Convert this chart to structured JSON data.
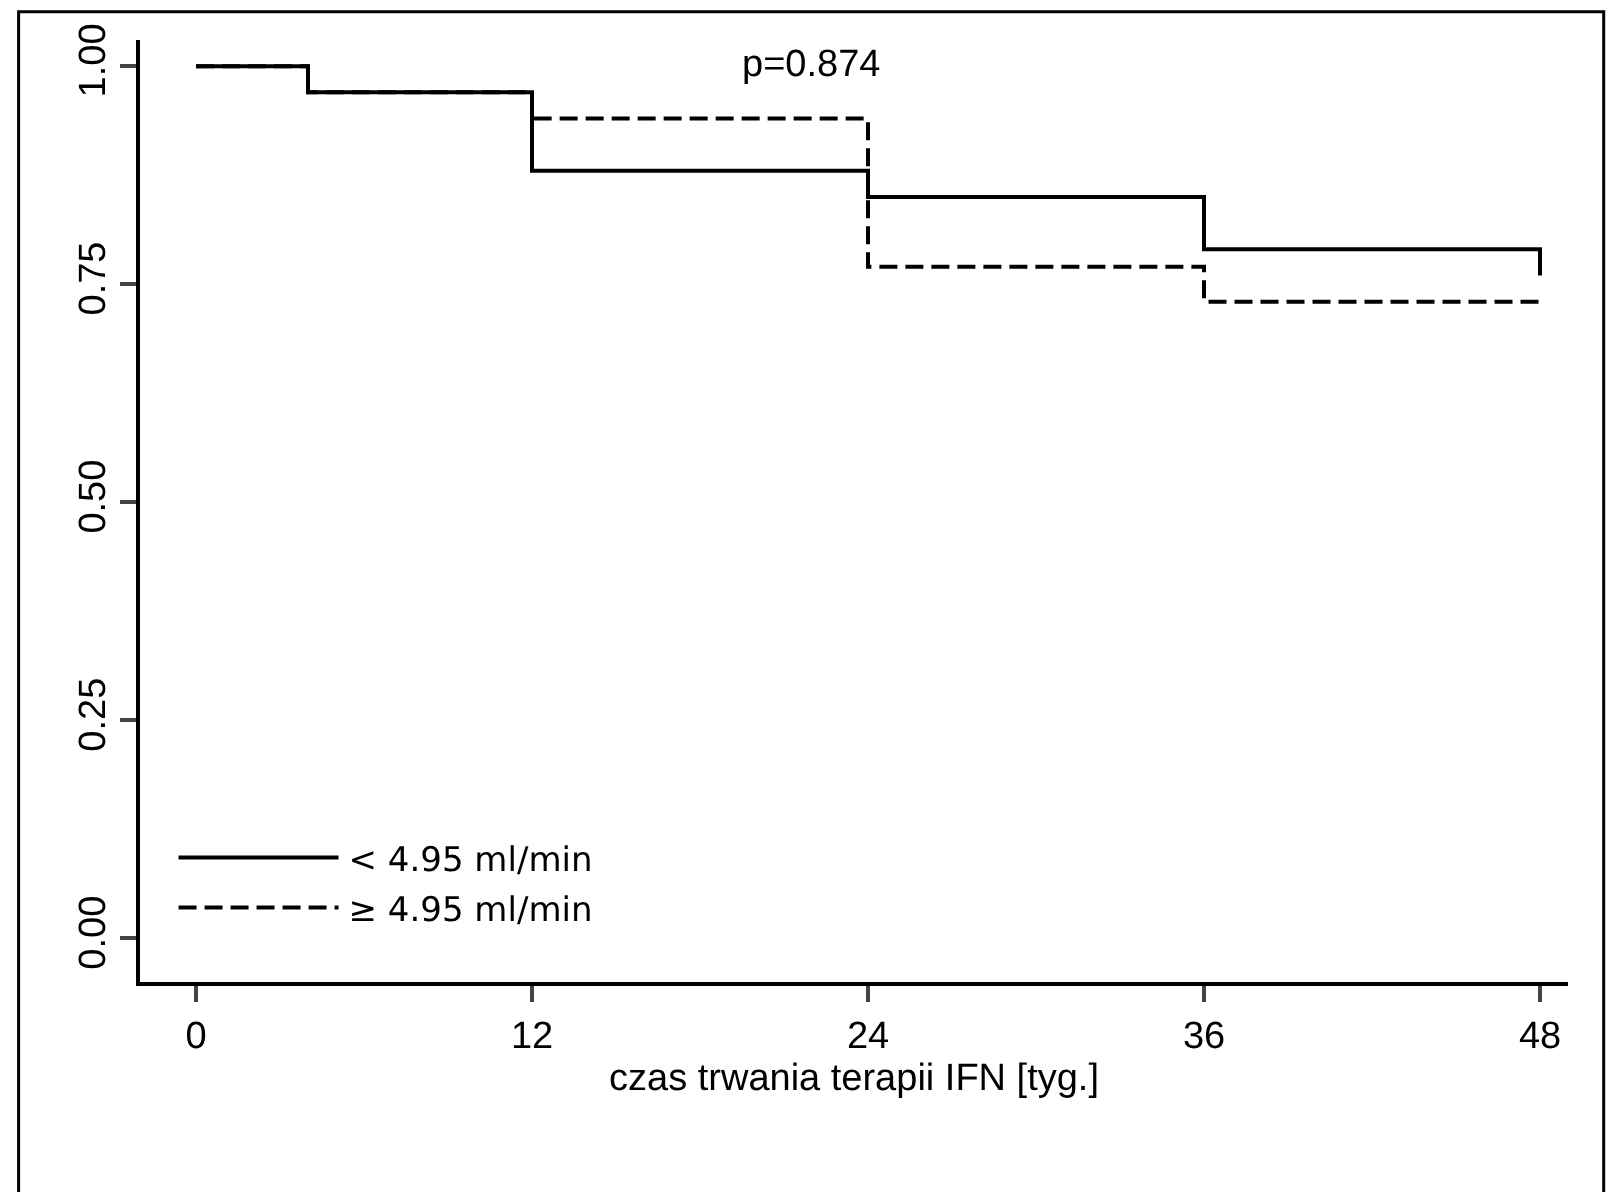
{
  "chart_data": {
    "type": "step",
    "xlabel": "czas trwania terapii IFN [tyg.]",
    "x": [
      0,
      4,
      12,
      24,
      36,
      48
    ],
    "series": [
      {
        "name": "< 4.95 ml/min",
        "color": "#000000",
        "line_style": "solid",
        "values": [
          1.0,
          0.97,
          0.88,
          0.85,
          0.79,
          0.76
        ]
      },
      {
        "name": "≥ 4.95 ml/min",
        "color": "#000000",
        "line_style": "dashed",
        "values": [
          1.0,
          0.97,
          0.94,
          0.77,
          0.73,
          0.73
        ]
      }
    ],
    "xlim": [
      -2,
      49
    ],
    "xticks": [
      0,
      12,
      24,
      36,
      48
    ],
    "ylim": [
      -0.05,
      1.03
    ],
    "yticks": [
      {
        "value": 0,
        "label": "0.00"
      },
      {
        "value": 0.25,
        "label": "0.25"
      },
      {
        "value": 0.5,
        "label": "0.50"
      },
      {
        "value": 0.75,
        "label": "0.75"
      },
      {
        "value": 1,
        "label": "1.00"
      }
    ],
    "annotations": [
      "p=0.874"
    ],
    "legend": "bottom left",
    "marker": "none"
  }
}
